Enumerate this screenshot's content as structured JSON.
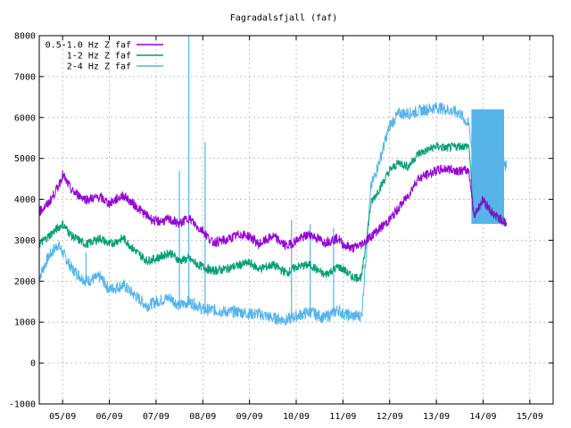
{
  "chart_data": {
    "type": "line",
    "title": "Fagradalsfjall (faf)",
    "xlabel": "",
    "ylabel": "",
    "ylim": [
      -1000,
      8000
    ],
    "xlim": [
      4.5,
      15.5
    ],
    "yticks": [
      -1000,
      0,
      1000,
      2000,
      3000,
      4000,
      5000,
      6000,
      7000,
      8000
    ],
    "xticks": [
      {
        "pos": 5,
        "label": "05/09"
      },
      {
        "pos": 6,
        "label": "06/09"
      },
      {
        "pos": 7,
        "label": "07/09"
      },
      {
        "pos": 8,
        "label": "08/09"
      },
      {
        "pos": 9,
        "label": "09/09"
      },
      {
        "pos": 10,
        "label": "10/09"
      },
      {
        "pos": 11,
        "label": "11/09"
      },
      {
        "pos": 12,
        "label": "12/09"
      },
      {
        "pos": 13,
        "label": "13/09"
      },
      {
        "pos": 14,
        "label": "14/09"
      },
      {
        "pos": 15,
        "label": "15/09"
      }
    ],
    "grid": true,
    "legend_position": "top-left",
    "series": [
      {
        "name": "0.5-1.0 Hz Z faf",
        "color": "#9400d3",
        "x": [
          4.5,
          4.7,
          4.9,
          5.0,
          5.2,
          5.5,
          5.8,
          6.0,
          6.3,
          6.5,
          6.8,
          7.0,
          7.3,
          7.5,
          7.7,
          7.9,
          8.0,
          8.2,
          8.5,
          8.8,
          9.0,
          9.2,
          9.5,
          9.8,
          10.0,
          10.3,
          10.6,
          10.9,
          11.0,
          11.2,
          11.4,
          11.6,
          11.8,
          12.0,
          12.2,
          12.4,
          12.6,
          12.8,
          13.0,
          13.2,
          13.5,
          13.7,
          13.8,
          14.0,
          14.2,
          14.4,
          14.5
        ],
        "y": [
          3700,
          3900,
          4300,
          4600,
          4200,
          4000,
          4050,
          3900,
          4100,
          3900,
          3600,
          3450,
          3500,
          3400,
          3550,
          3300,
          3250,
          2950,
          3000,
          3150,
          3100,
          2900,
          3100,
          2850,
          3000,
          3150,
          2950,
          3050,
          2900,
          2800,
          2900,
          3100,
          3300,
          3500,
          3800,
          4100,
          4500,
          4600,
          4700,
          4750,
          4700,
          4700,
          3600,
          4000,
          3650,
          3500,
          3400
        ],
        "noise": 120
      },
      {
        "name": "1-2 Hz Z faf",
        "color": "#009e73",
        "x": [
          4.5,
          4.7,
          4.9,
          5.0,
          5.2,
          5.5,
          5.8,
          6.0,
          6.3,
          6.5,
          6.8,
          7.0,
          7.3,
          7.5,
          7.7,
          7.9,
          8.0,
          8.2,
          8.5,
          8.8,
          9.0,
          9.2,
          9.5,
          9.8,
          10.0,
          10.3,
          10.6,
          10.9,
          11.0,
          11.2,
          11.4,
          11.6,
          11.8,
          12.0,
          12.2,
          12.4,
          12.6,
          12.8,
          13.0,
          13.2,
          13.5,
          13.7,
          13.8,
          14.0,
          14.2,
          14.4,
          14.5
        ],
        "y": [
          2900,
          3100,
          3300,
          3400,
          3100,
          2900,
          3050,
          2900,
          3050,
          2800,
          2500,
          2550,
          2700,
          2500,
          2550,
          2400,
          2350,
          2250,
          2300,
          2400,
          2450,
          2300,
          2400,
          2200,
          2350,
          2400,
          2150,
          2350,
          2300,
          2100,
          2100,
          3900,
          4300,
          4700,
          4900,
          4800,
          5100,
          5200,
          5300,
          5250,
          5300,
          5300,
          3600,
          4000,
          3650,
          3500,
          3400
        ],
        "noise": 110
      },
      {
        "name": "2-4 Hz Z faf",
        "color": "#56b4e9",
        "x": [
          4.5,
          4.7,
          4.9,
          5.0,
          5.2,
          5.5,
          5.8,
          6.0,
          6.3,
          6.5,
          6.8,
          7.0,
          7.3,
          7.5,
          7.7,
          7.9,
          8.0,
          8.2,
          8.5,
          8.8,
          9.0,
          9.2,
          9.5,
          9.8,
          10.0,
          10.3,
          10.6,
          10.9,
          11.0,
          11.2,
          11.4,
          11.6,
          11.8,
          12.0,
          12.2,
          12.4,
          12.6,
          12.8,
          13.0,
          13.2,
          13.5,
          13.7,
          13.8,
          14.0,
          14.2,
          14.4,
          14.5
        ],
        "y": [
          2100,
          2600,
          2900,
          2700,
          2300,
          2000,
          2100,
          1800,
          1900,
          1700,
          1400,
          1500,
          1600,
          1400,
          1500,
          1400,
          1300,
          1300,
          1250,
          1250,
          1200,
          1200,
          1100,
          1050,
          1150,
          1250,
          1100,
          1300,
          1200,
          1150,
          1150,
          4300,
          5000,
          5800,
          6100,
          6100,
          6150,
          6200,
          6250,
          6200,
          6100,
          5800,
          4800,
          4800,
          4800,
          4800,
          4800
        ],
        "noise": 150
      }
    ],
    "spikes": [
      {
        "series": 2,
        "x": 7.7,
        "y": 8000
      },
      {
        "series": 2,
        "x": 8.05,
        "y": 5400
      },
      {
        "series": 2,
        "x": 5.5,
        "y": 2700
      },
      {
        "series": 2,
        "x": 7.5,
        "y": 4700
      },
      {
        "series": 2,
        "x": 9.9,
        "y": 3500
      },
      {
        "series": 2,
        "x": 10.3,
        "y": 3400
      },
      {
        "series": 2,
        "x": 10.8,
        "y": 3300
      }
    ],
    "band": {
      "series": 2,
      "x_start": 13.75,
      "x_end": 14.45,
      "y_low": 3400,
      "y_high": 6200
    }
  }
}
